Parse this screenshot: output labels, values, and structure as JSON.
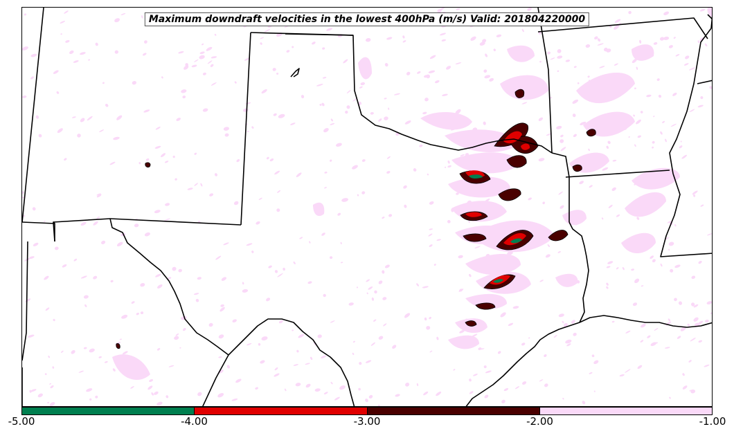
{
  "title": "Maximum downdraft velocities in the lowest 400hPa (m/s) Valid: 201804220000",
  "colorbar": {
    "segments": [
      {
        "name": "-5 to -4",
        "color": "#007f4f"
      },
      {
        "name": "-4 to -3",
        "color": "#e00000"
      },
      {
        "name": "-3 to -2",
        "color": "#4a0000"
      },
      {
        "name": "-2 to -1",
        "color": "#fad9f8"
      }
    ],
    "ticks": [
      "-5.00",
      "-4.00",
      "-3.00",
      "-2.00",
      "-1.00"
    ]
  },
  "colors": {
    "light": "#fad9f8",
    "dark": "#4a0000",
    "red": "#e00000",
    "green": "#007f4f",
    "border": "#000000"
  }
}
